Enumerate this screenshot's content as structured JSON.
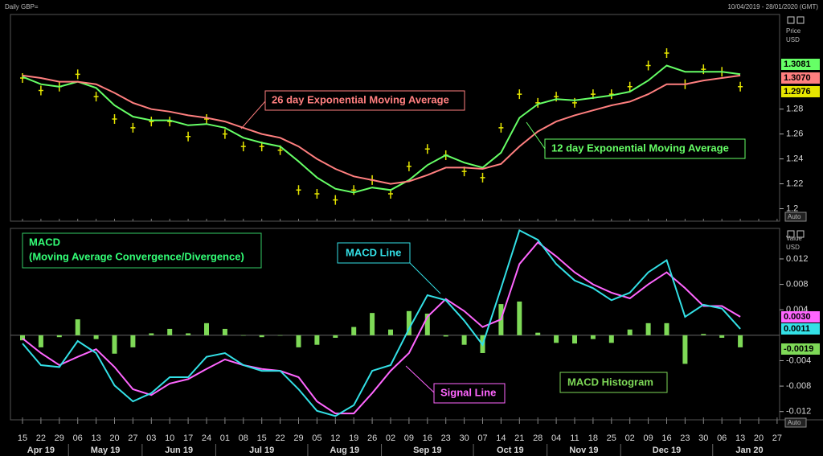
{
  "header": {
    "title": "Daily GBP=",
    "range": "10/04/2019 - 28/01/2020 (GMT)"
  },
  "chart_data": [
    {
      "type": "line",
      "axis_title": [
        "Price",
        "USD"
      ],
      "scale_mode": "Auto",
      "categories": [
        "15",
        "22",
        "29",
        "06",
        "13",
        "20",
        "27",
        "03",
        "10",
        "17",
        "24",
        "01",
        "08",
        "15",
        "22",
        "29",
        "05",
        "12",
        "19",
        "26",
        "02",
        "09",
        "16",
        "23",
        "30",
        "07",
        "14",
        "21",
        "28",
        "04",
        "11",
        "18",
        "25",
        "02",
        "09",
        "16",
        "23",
        "30",
        "06",
        "13",
        "20",
        "27"
      ],
      "ylim": [
        1.19,
        1.356
      ],
      "yticks": [
        1.28,
        1.26,
        1.24,
        1.22,
        1.2
      ],
      "series": [
        {
          "name": "Price",
          "color": "#e6e600",
          "style": "bars",
          "values": [
            1.305,
            1.295,
            1.298,
            1.308,
            1.29,
            1.272,
            1.265,
            1.27,
            1.27,
            1.258,
            1.272,
            1.26,
            1.25,
            1.25,
            1.247,
            1.215,
            1.212,
            1.207,
            1.215,
            1.223,
            1.212,
            1.234,
            1.248,
            1.243,
            1.23,
            1.225,
            1.265,
            1.292,
            1.285,
            1.29,
            1.285,
            1.292,
            1.292,
            1.298,
            1.315,
            1.325,
            1.3,
            1.312,
            1.31,
            1.298,
            null,
            null
          ]
        },
        {
          "name": "12 day Exponential Moving Average",
          "color": "#66ff66",
          "values": [
            1.306,
            1.3,
            1.298,
            1.302,
            1.297,
            1.283,
            1.274,
            1.271,
            1.271,
            1.267,
            1.268,
            1.265,
            1.257,
            1.253,
            1.25,
            1.238,
            1.225,
            1.216,
            1.213,
            1.217,
            1.215,
            1.223,
            1.235,
            1.243,
            1.237,
            1.233,
            1.245,
            1.273,
            1.284,
            1.288,
            1.287,
            1.289,
            1.291,
            1.294,
            1.303,
            1.315,
            1.31,
            1.31,
            1.31,
            1.308,
            null,
            null
          ]
        },
        {
          "name": "26 day Exponential Moving Average",
          "color": "#ff7f7f",
          "values": [
            1.307,
            1.305,
            1.302,
            1.302,
            1.3,
            1.293,
            1.285,
            1.28,
            1.278,
            1.275,
            1.273,
            1.27,
            1.265,
            1.26,
            1.257,
            1.25,
            1.24,
            1.232,
            1.226,
            1.223,
            1.22,
            1.222,
            1.227,
            1.233,
            1.233,
            1.232,
            1.236,
            1.25,
            1.262,
            1.27,
            1.275,
            1.279,
            1.283,
            1.286,
            1.292,
            1.3,
            1.3,
            1.303,
            1.305,
            1.307,
            null,
            null
          ]
        }
      ],
      "last_labels": [
        "1.3081",
        "1.3070",
        "1.2976"
      ]
    },
    {
      "type": "macd",
      "axis_title": [
        "Value",
        "USD"
      ],
      "scale_mode": "Auto",
      "title": [
        "MACD",
        "(Moving Average Convergence/Divergence)"
      ],
      "categories": [
        "15",
        "22",
        "29",
        "06",
        "13",
        "20",
        "27",
        "03",
        "10",
        "17",
        "24",
        "01",
        "08",
        "15",
        "22",
        "29",
        "05",
        "12",
        "19",
        "26",
        "02",
        "09",
        "16",
        "23",
        "30",
        "07",
        "14",
        "21",
        "28",
        "04",
        "11",
        "18",
        "25",
        "02",
        "09",
        "16",
        "23",
        "30",
        "06",
        "13",
        "20",
        "27"
      ],
      "months": [
        "Apr 19",
        "May 19",
        "Jun 19",
        "Jul 19",
        "Aug 19",
        "Sep 19",
        "Oct 19",
        "Nov 19",
        "Dec 19",
        "Jan 20"
      ],
      "ylim": [
        -0.0133,
        0.0168
      ],
      "yticks": [
        0.012,
        0.008,
        0.004,
        -0.004,
        -0.008,
        -0.012
      ],
      "series": [
        {
          "name": "MACD Histogram",
          "color": "#7ed957",
          "style": "histogram",
          "values": [
            -0.0008,
            -0.0019,
            -0.0003,
            0.0025,
            -0.0006,
            -0.0029,
            -0.0019,
            0.0003,
            0.001,
            0.0003,
            0.0019,
            0.001,
            0,
            -0.0003,
            0,
            -0.0019,
            -0.0015,
            -0.0004,
            0.0013,
            0.0035,
            0.0009,
            0.0038,
            0.0034,
            -0.0002,
            -0.0015,
            -0.0028,
            0.0049,
            0.0053,
            0.0004,
            -0.0012,
            -0.0013,
            -0.0006,
            -0.0012,
            0.0009,
            0.0019,
            0.0019,
            -0.0045,
            0.0002,
            -0.0004,
            -0.0019,
            null,
            null
          ]
        },
        {
          "name": "Signal Line",
          "color": "#ff66ff",
          "values": [
            -0.0005,
            -0.0028,
            -0.0047,
            -0.0034,
            -0.0022,
            -0.005,
            -0.0085,
            -0.0094,
            -0.0076,
            -0.0069,
            -0.0053,
            -0.0038,
            -0.0047,
            -0.0053,
            -0.0056,
            -0.0066,
            -0.0104,
            -0.0123,
            -0.0123,
            -0.0091,
            -0.0056,
            -0.0028,
            0.0029,
            0.0057,
            0.0038,
            0.0013,
            0.0025,
            0.0112,
            0.0146,
            0.0124,
            0.0099,
            0.008,
            0.0067,
            0.0058,
            0.008,
            0.0099,
            0.0074,
            0.0046,
            0.0046,
            0.0029,
            null,
            null
          ]
        },
        {
          "name": "MACD Line",
          "color": "#33e0e6",
          "values": [
            -0.0013,
            -0.0047,
            -0.005,
            -0.0009,
            -0.0028,
            -0.0079,
            -0.0104,
            -0.0091,
            -0.0066,
            -0.0066,
            -0.0034,
            -0.0028,
            -0.0047,
            -0.0056,
            -0.0056,
            -0.0085,
            -0.0119,
            -0.0127,
            -0.011,
            -0.0056,
            -0.0047,
            0.001,
            0.0063,
            0.0055,
            0.0023,
            -0.0015,
            0.0074,
            0.0165,
            0.015,
            0.0112,
            0.0086,
            0.0074,
            0.0055,
            0.0067,
            0.0099,
            0.0118,
            0.0029,
            0.0048,
            0.0042,
            0.001,
            null,
            null
          ]
        }
      ],
      "last_labels": [
        "0.0030",
        "0.0011",
        "-0.0019"
      ]
    }
  ]
}
